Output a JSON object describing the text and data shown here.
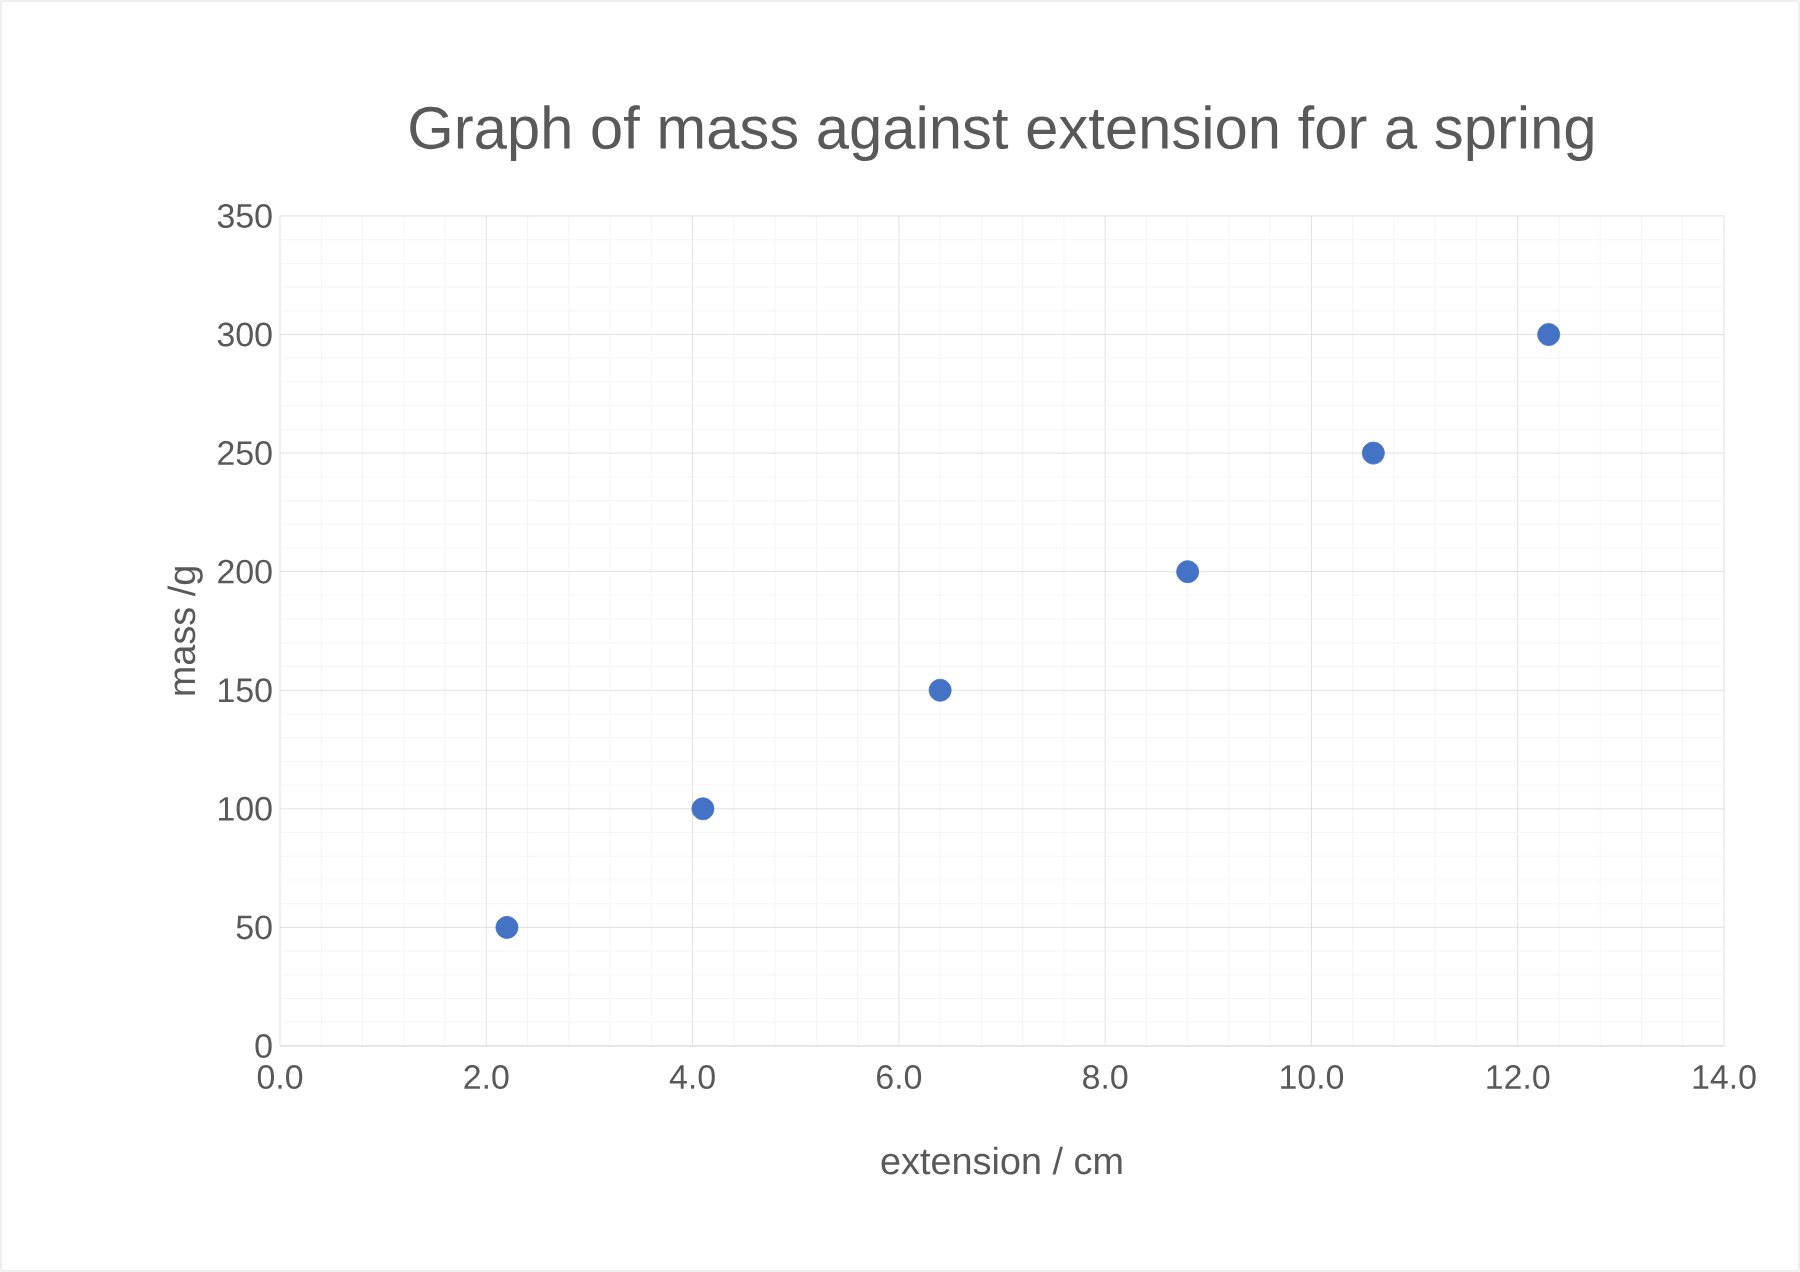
{
  "chart_data": {
    "type": "scatter",
    "title": "Graph of mass against extension for a spring",
    "xlabel": "extension / cm",
    "ylabel": "mass /g",
    "x": [
      2.2,
      4.1,
      6.4,
      8.8,
      10.6,
      12.3
    ],
    "series": [
      {
        "color": "#4472c4",
        "marker": "circle",
        "values": [
          50,
          100,
          150,
          200,
          250,
          300
        ]
      }
    ],
    "xlim": [
      0,
      14
    ],
    "ylim": [
      0,
      350
    ],
    "xticks": [
      {
        "value": 0,
        "label": "0.0"
      },
      {
        "value": 2,
        "label": "2.0"
      },
      {
        "value": 4,
        "label": "4.0"
      },
      {
        "value": 6,
        "label": "6.0"
      },
      {
        "value": 8,
        "label": "8.0"
      },
      {
        "value": 10,
        "label": "10.0"
      },
      {
        "value": 12,
        "label": "12.0"
      },
      {
        "value": 14,
        "label": "14.0"
      }
    ],
    "yticks": [
      0,
      50,
      100,
      150,
      200,
      250,
      300,
      350
    ],
    "grid": true
  }
}
